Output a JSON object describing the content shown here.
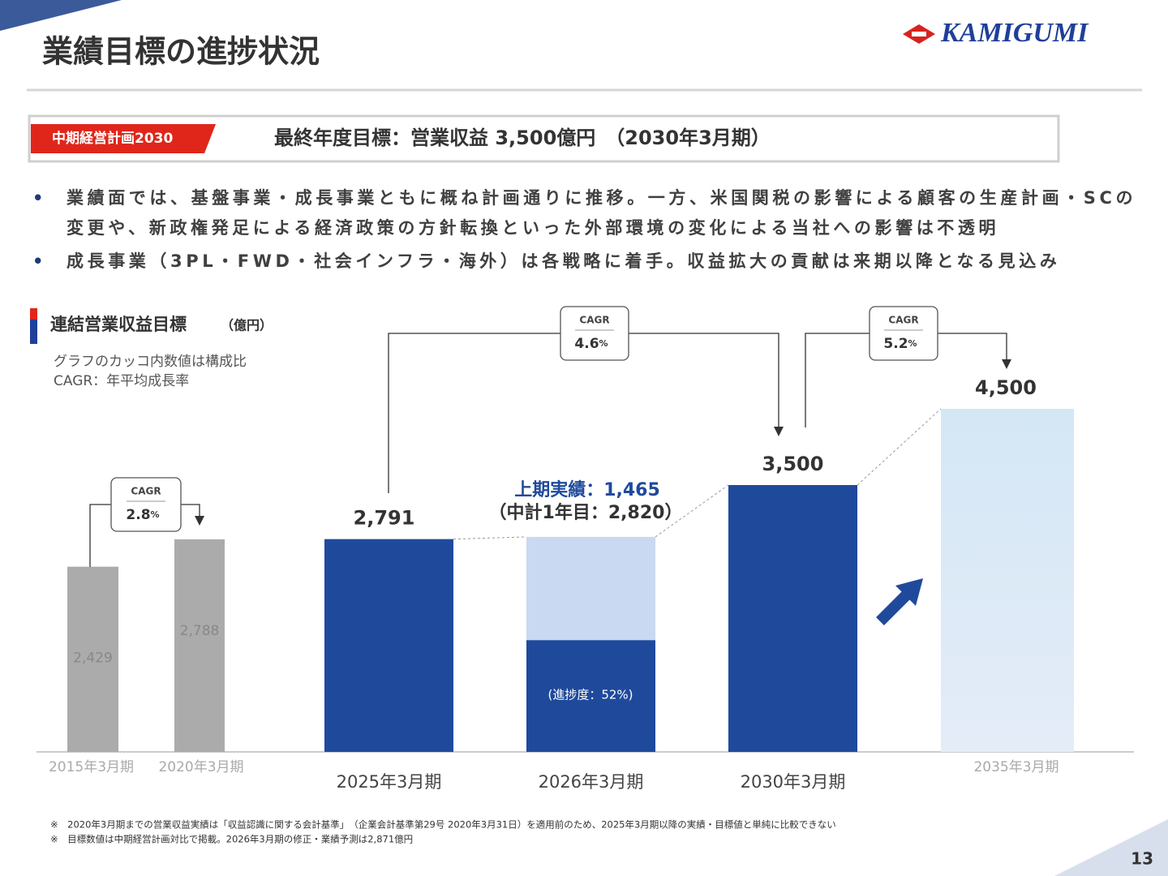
{
  "header": {
    "title": "業績目標の進捗状況",
    "logo": "KAMIGUMI",
    "page_number": "13"
  },
  "banner": {
    "tag": "中期経営計画2030",
    "text": "最終年度目標：営業収益 3,500億円　（2030年3月期）"
  },
  "bullets": [
    "業績面では、基盤事業・成長事業ともに概ね計画通りに推移。一方、米国関税の影響による顧客の生産計画・SCの変更や、新政権発足による経済政策の方針転換といった外部環境の変化による当社への影響は不透明",
    "成長事業（3PL・FWD・社会インフラ・海外）は各戦略に着手。収益拡大の貢献は来期以降となる見込み"
  ],
  "chart_data": {
    "type": "bar",
    "title": "連結営業収益目標",
    "unit": "（億円）",
    "notes": [
      "グラフのカッコ内数値は構成比",
      "CAGR：年平均成長率"
    ],
    "categories": [
      "2015年3月期",
      "2020年3月期",
      "2025年3月期",
      "2026年3月期",
      "2030年3月期",
      "2035年3月期"
    ],
    "values": [
      2429,
      2788,
      2791,
      2820,
      3500,
      4500
    ],
    "value_labels": [
      "2,429",
      "2,788",
      "2,791",
      "（中計1年目：2,820）",
      "3,500",
      "4,500"
    ],
    "colors": [
      "#ababab",
      "#ababab",
      "#1f4a9c",
      "#c9d9f2",
      "#1f4a9c",
      "#d4e7f5"
    ],
    "first_half": {
      "label": "上期実績：1,465",
      "value": 1465,
      "color": "#1f4a9c",
      "progress": "(進捗度：52%)"
    },
    "cagr": [
      {
        "label": "CAGR",
        "value": 2.8,
        "unit": "%"
      },
      {
        "label": "CAGR",
        "value": 4.6,
        "unit": "%"
      },
      {
        "label": "CAGR",
        "value": 5.2,
        "unit": "%"
      }
    ]
  },
  "footnotes": [
    "※　2020年3月期までの営業収益実績は「収益認識に関する会計基準」　（企業会計基準第29号 2020年3月31日）を適用前のため、2025年3月期以降の実績・目標値と単純に比較できない",
    "※　目標数値は中期経営計画対比で掲載。2026年3月期の修正・業績予測は2,871億円"
  ]
}
